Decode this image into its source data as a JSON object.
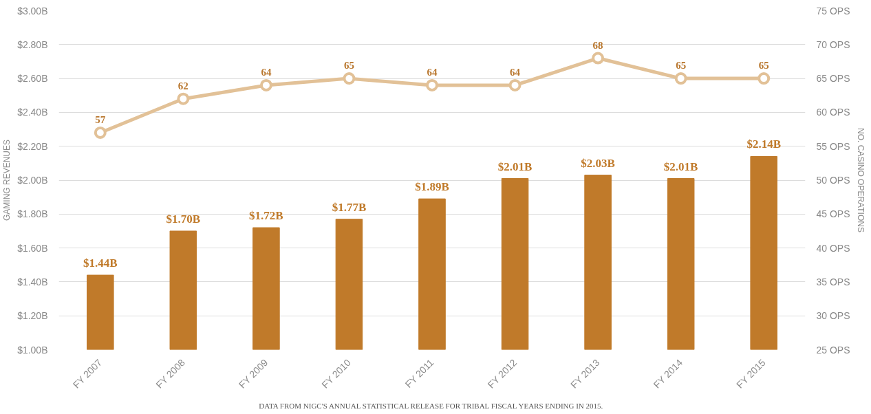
{
  "chart_data": {
    "type": "bar",
    "categories": [
      "FY 2007",
      "FY 2008",
      "FY 2009",
      "FY 2010",
      "FY 2011",
      "FY 2012",
      "FY 2013",
      "FY 2014",
      "FY 2015"
    ],
    "series": [
      {
        "color": "#c07a2a",
        "values": [
          1.44,
          1.7,
          1.72,
          1.77,
          1.89,
          2.01,
          2.03,
          2.01,
          2.14
        ],
        "value_labels": [
          "$1.44B",
          "$1.70B",
          "$1.72B",
          "$1.77B",
          "$1.89B",
          "$2.01B",
          "$2.03B",
          "$2.01B",
          "$2.14B"
        ]
      },
      {
        "type": "line",
        "axis": "y2",
        "color": "#e2c197",
        "marker": "circle",
        "line_style": "solid",
        "values": [
          57,
          62,
          64,
          65,
          64,
          64,
          68,
          65,
          65
        ],
        "value_labels": [
          "57",
          "62",
          "64",
          "65",
          "64",
          "64",
          "68",
          "65",
          "65"
        ]
      }
    ],
    "ylabel": "GAMING REVENUES",
    "y2label": "NO. CASINO OPERATIONS",
    "ylim": [
      1.0,
      3.0
    ],
    "yticks": [
      {
        "value": 1.0,
        "label": "$1.00B"
      },
      {
        "value": 1.2,
        "label": "$1.20B"
      },
      {
        "value": 1.4,
        "label": "$1.40B"
      },
      {
        "value": 1.6,
        "label": "$1.60B"
      },
      {
        "value": 1.8,
        "label": "$1.80B"
      },
      {
        "value": 2.0,
        "label": "$2.00B"
      },
      {
        "value": 2.2,
        "label": "$2.20B"
      },
      {
        "value": 2.4,
        "label": "$2.40B"
      },
      {
        "value": 2.6,
        "label": "$2.60B"
      },
      {
        "value": 2.8,
        "label": "$2.80B"
      },
      {
        "value": 3.0,
        "label": "$3.00B"
      }
    ],
    "y2lim": [
      25,
      75
    ],
    "y2ticks": [
      {
        "value": 25,
        "label": "25 OPS"
      },
      {
        "value": 30,
        "label": "30 OPS"
      },
      {
        "value": 35,
        "label": "35 OPS"
      },
      {
        "value": 40,
        "label": "40 OPS"
      },
      {
        "value": 45,
        "label": "45 OPS"
      },
      {
        "value": 50,
        "label": "50 OPS"
      },
      {
        "value": 55,
        "label": "55 OPS"
      },
      {
        "value": 60,
        "label": "60 OPS"
      },
      {
        "value": 65,
        "label": "65 OPS"
      },
      {
        "value": 70,
        "label": "70 OPS"
      },
      {
        "value": 75,
        "label": "75 OPS"
      }
    ],
    "grid": "y",
    "annotations": [
      "DATA FROM NIGC'S ANNUAL STATISTICAL RELEASE FOR TRIBAL FISCAL YEARS ENDING IN 2015."
    ]
  }
}
